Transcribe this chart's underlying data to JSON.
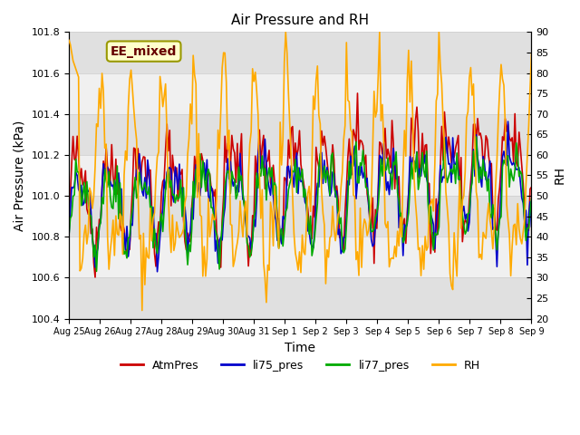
{
  "title": "Air Pressure and RH",
  "xlabel": "Time",
  "ylabel_left": "Air Pressure (kPa)",
  "ylabel_right": "RH",
  "ylim_left": [
    100.4,
    101.8
  ],
  "ylim_right": [
    20,
    90
  ],
  "yticks_left": [
    100.4,
    100.6,
    100.8,
    101.0,
    101.2,
    101.4,
    101.6,
    101.8
  ],
  "yticks_right": [
    20,
    25,
    30,
    35,
    40,
    45,
    50,
    55,
    60,
    65,
    70,
    75,
    80,
    85,
    90
  ],
  "xtick_labels": [
    "Aug 25",
    "Aug 26",
    "Aug 27",
    "Aug 28",
    "Aug 29",
    "Aug 30",
    "Aug 31",
    "Sep 1",
    "Sep 2",
    "Sep 3",
    "Sep 4",
    "Sep 5",
    "Sep 6",
    "Sep 7",
    "Sep 8",
    "Sep 9"
  ],
  "colors": {
    "AtmPres": "#cc0000",
    "li75_pres": "#0000cc",
    "li77_pres": "#00aa00",
    "RH": "#ffaa00"
  },
  "legend_labels": [
    "AtmPres",
    "li75_pres",
    "li77_pres",
    "RH"
  ],
  "annotation_text": "EE_mixed",
  "annotation_color": "#660000",
  "annotation_bg": "#ffffcc",
  "annotation_border": "#999900",
  "background_color": "#ffffff",
  "plot_bg": "#f0f0f0",
  "band_color": "#e0e0e0",
  "grid_color": "#cccccc",
  "n_points": 336,
  "seed": 42
}
